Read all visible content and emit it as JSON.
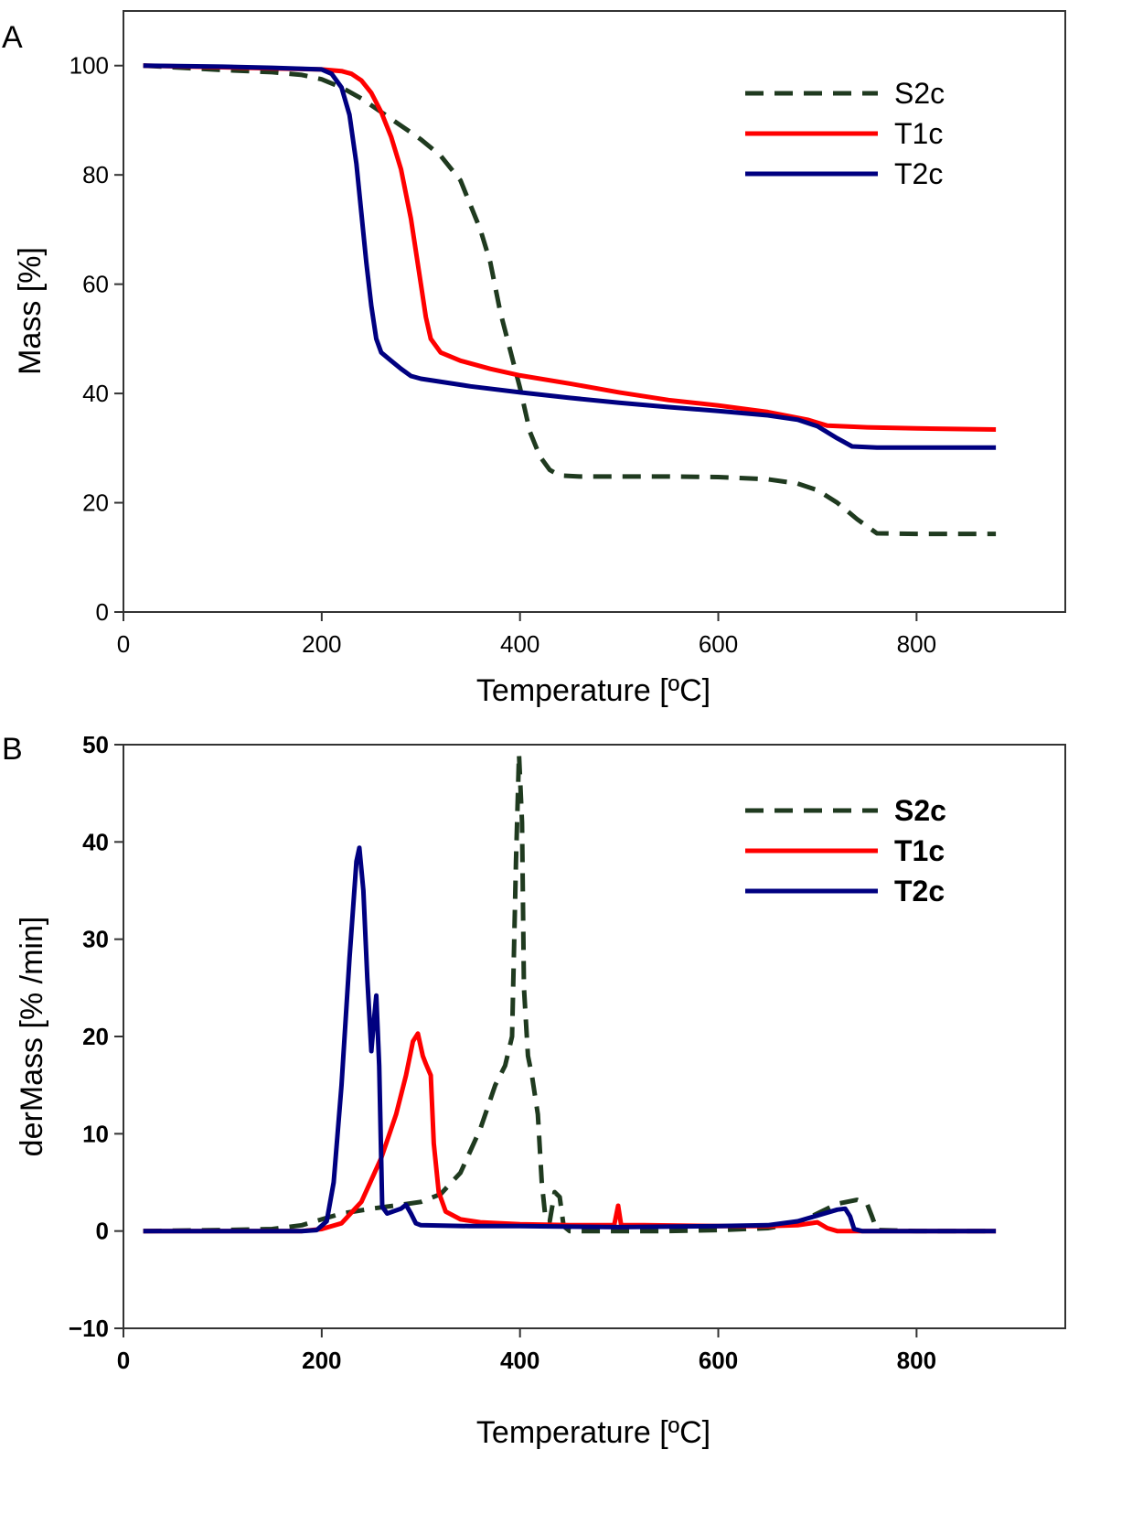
{
  "chart_data": [
    {
      "panel_label": "A",
      "type": "line",
      "xlabel": "Temperature [ºC]",
      "ylabel": "Mass [%]",
      "xlim": [
        0,
        950
      ],
      "ylim": [
        0,
        110
      ],
      "xticks": [
        0,
        200,
        400,
        600,
        800
      ],
      "yticks": [
        0,
        20,
        40,
        60,
        80,
        100
      ],
      "grid": false,
      "legend_position": "top-right",
      "series": [
        {
          "name": "S2c",
          "color": "#1f3a1f",
          "style": "dashed",
          "points": [
            [
              20,
              100
            ],
            [
              60,
              99.6
            ],
            [
              100,
              99.2
            ],
            [
              150,
              98.8
            ],
            [
              180,
              98.3
            ],
            [
              200,
              97.5
            ],
            [
              220,
              96
            ],
            [
              240,
              94
            ],
            [
              260,
              91.5
            ],
            [
              280,
              89
            ],
            [
              300,
              86.5
            ],
            [
              320,
              83.5
            ],
            [
              340,
              79
            ],
            [
              360,
              70
            ],
            [
              370,
              64
            ],
            [
              380,
              55
            ],
            [
              390,
              48
            ],
            [
              400,
              41
            ],
            [
              410,
              33
            ],
            [
              420,
              28.5
            ],
            [
              430,
              26
            ],
            [
              440,
              25
            ],
            [
              460,
              24.8
            ],
            [
              500,
              24.8
            ],
            [
              550,
              24.8
            ],
            [
              600,
              24.7
            ],
            [
              650,
              24.3
            ],
            [
              680,
              23.5
            ],
            [
              700,
              22.3
            ],
            [
              720,
              20
            ],
            [
              740,
              17
            ],
            [
              760,
              14.4
            ],
            [
              800,
              14.3
            ],
            [
              880,
              14.3
            ]
          ]
        },
        {
          "name": "T1c",
          "color": "#ff0000",
          "style": "solid",
          "points": [
            [
              20,
              100
            ],
            [
              100,
              99.7
            ],
            [
              150,
              99.5
            ],
            [
              200,
              99.3
            ],
            [
              220,
              99
            ],
            [
              230,
              98.5
            ],
            [
              240,
              97.3
            ],
            [
              250,
              95
            ],
            [
              260,
              91.5
            ],
            [
              270,
              87
            ],
            [
              280,
              81
            ],
            [
              290,
              72
            ],
            [
              300,
              60
            ],
            [
              305,
              54
            ],
            [
              310,
              50
            ],
            [
              320,
              47.5
            ],
            [
              340,
              46
            ],
            [
              370,
              44.5
            ],
            [
              400,
              43.3
            ],
            [
              450,
              41.8
            ],
            [
              500,
              40.2
            ],
            [
              550,
              38.8
            ],
            [
              600,
              37.8
            ],
            [
              650,
              36.6
            ],
            [
              690,
              35.2
            ],
            [
              710,
              34.1
            ],
            [
              750,
              33.8
            ],
            [
              800,
              33.6
            ],
            [
              880,
              33.4
            ]
          ]
        },
        {
          "name": "T2c",
          "color": "#000080",
          "style": "solid",
          "points": [
            [
              20,
              100
            ],
            [
              100,
              99.8
            ],
            [
              150,
              99.6
            ],
            [
              200,
              99.3
            ],
            [
              210,
              98.5
            ],
            [
              220,
              96
            ],
            [
              228,
              91
            ],
            [
              235,
              82
            ],
            [
              240,
              73
            ],
            [
              245,
              64
            ],
            [
              250,
              56
            ],
            [
              255,
              50
            ],
            [
              260,
              47.5
            ],
            [
              270,
              46
            ],
            [
              280,
              44.5
            ],
            [
              290,
              43.2
            ],
            [
              300,
              42.7
            ],
            [
              350,
              41.3
            ],
            [
              400,
              40.2
            ],
            [
              450,
              39.2
            ],
            [
              500,
              38.3
            ],
            [
              550,
              37.5
            ],
            [
              600,
              36.8
            ],
            [
              650,
              36
            ],
            [
              680,
              35.2
            ],
            [
              700,
              34
            ],
            [
              720,
              31.8
            ],
            [
              735,
              30.3
            ],
            [
              760,
              30.1
            ],
            [
              880,
              30.1
            ]
          ]
        }
      ]
    },
    {
      "panel_label": "B",
      "type": "line",
      "xlabel": "Temperature [ºC]",
      "ylabel": "derMass [% /min]",
      "xlim": [
        0,
        950
      ],
      "ylim": [
        -10,
        50
      ],
      "xticks": [
        0,
        200,
        400,
        600,
        800
      ],
      "yticks": [
        -10,
        0,
        10,
        20,
        30,
        40,
        50
      ],
      "grid": false,
      "legend_position": "top-right",
      "series": [
        {
          "name": "S2c",
          "color": "#1f3a1f",
          "style": "dashed",
          "points": [
            [
              20,
              0
            ],
            [
              100,
              0.1
            ],
            [
              150,
              0.2
            ],
            [
              180,
              0.6
            ],
            [
              200,
              1.2
            ],
            [
              220,
              1.8
            ],
            [
              250,
              2.3
            ],
            [
              280,
              2.7
            ],
            [
              300,
              3
            ],
            [
              320,
              3.8
            ],
            [
              340,
              6
            ],
            [
              360,
              10.5
            ],
            [
              375,
              15
            ],
            [
              385,
              17
            ],
            [
              392,
              20
            ],
            [
              396,
              38
            ],
            [
              399,
              49
            ],
            [
              402,
              42
            ],
            [
              404,
              25
            ],
            [
              408,
              18
            ],
            [
              412,
              16
            ],
            [
              418,
              12
            ],
            [
              422,
              5
            ],
            [
              426,
              1
            ],
            [
              430,
              1
            ],
            [
              435,
              4
            ],
            [
              440,
              3.5
            ],
            [
              444,
              0.5
            ],
            [
              450,
              0
            ],
            [
              500,
              0
            ],
            [
              550,
              0
            ],
            [
              600,
              0.1
            ],
            [
              650,
              0.3
            ],
            [
              680,
              0.8
            ],
            [
              700,
              1.8
            ],
            [
              720,
              2.8
            ],
            [
              740,
              3.2
            ],
            [
              750,
              2.8
            ],
            [
              755,
              1.5
            ],
            [
              760,
              0.1
            ],
            [
              800,
              0
            ],
            [
              880,
              0
            ]
          ]
        },
        {
          "name": "T1c",
          "color": "#ff0000",
          "style": "solid",
          "points": [
            [
              20,
              0
            ],
            [
              100,
              0
            ],
            [
              180,
              0
            ],
            [
              200,
              0.2
            ],
            [
              220,
              0.8
            ],
            [
              240,
              3
            ],
            [
              260,
              7.5
            ],
            [
              275,
              12
            ],
            [
              285,
              16
            ],
            [
              292,
              19.5
            ],
            [
              297,
              20.3
            ],
            [
              302,
              18
            ],
            [
              305,
              17.2
            ],
            [
              310,
              16
            ],
            [
              313,
              9
            ],
            [
              318,
              4
            ],
            [
              325,
              2
            ],
            [
              340,
              1.2
            ],
            [
              360,
              0.9
            ],
            [
              400,
              0.7
            ],
            [
              450,
              0.6
            ],
            [
              495,
              0.6
            ],
            [
              499,
              2.6
            ],
            [
              502,
              0.6
            ],
            [
              525,
              0.6
            ],
            [
              600,
              0.5
            ],
            [
              650,
              0.5
            ],
            [
              680,
              0.6
            ],
            [
              700,
              0.9
            ],
            [
              710,
              0.3
            ],
            [
              720,
              0
            ],
            [
              880,
              0
            ]
          ]
        },
        {
          "name": "T2c",
          "color": "#000080",
          "style": "solid",
          "points": [
            [
              20,
              0
            ],
            [
              100,
              0
            ],
            [
              150,
              0
            ],
            [
              180,
              0
            ],
            [
              195,
              0.1
            ],
            [
              205,
              1
            ],
            [
              212,
              5
            ],
            [
              220,
              15
            ],
            [
              228,
              28
            ],
            [
              235,
              38
            ],
            [
              238,
              39.4
            ],
            [
              242,
              35
            ],
            [
              246,
              26
            ],
            [
              250,
              18.5
            ],
            [
              253,
              22
            ],
            [
              255,
              24.2
            ],
            [
              258,
              17
            ],
            [
              261,
              2.5
            ],
            [
              266,
              1.8
            ],
            [
              280,
              2.3
            ],
            [
              285,
              2.7
            ],
            [
              290,
              1.8
            ],
            [
              295,
              0.8
            ],
            [
              300,
              0.6
            ],
            [
              350,
              0.5
            ],
            [
              400,
              0.5
            ],
            [
              500,
              0.4
            ],
            [
              600,
              0.5
            ],
            [
              650,
              0.6
            ],
            [
              680,
              1
            ],
            [
              700,
              1.6
            ],
            [
              720,
              2.2
            ],
            [
              728,
              2.3
            ],
            [
              733,
              1.5
            ],
            [
              737,
              0.2
            ],
            [
              745,
              0
            ],
            [
              880,
              0
            ]
          ]
        }
      ]
    }
  ]
}
